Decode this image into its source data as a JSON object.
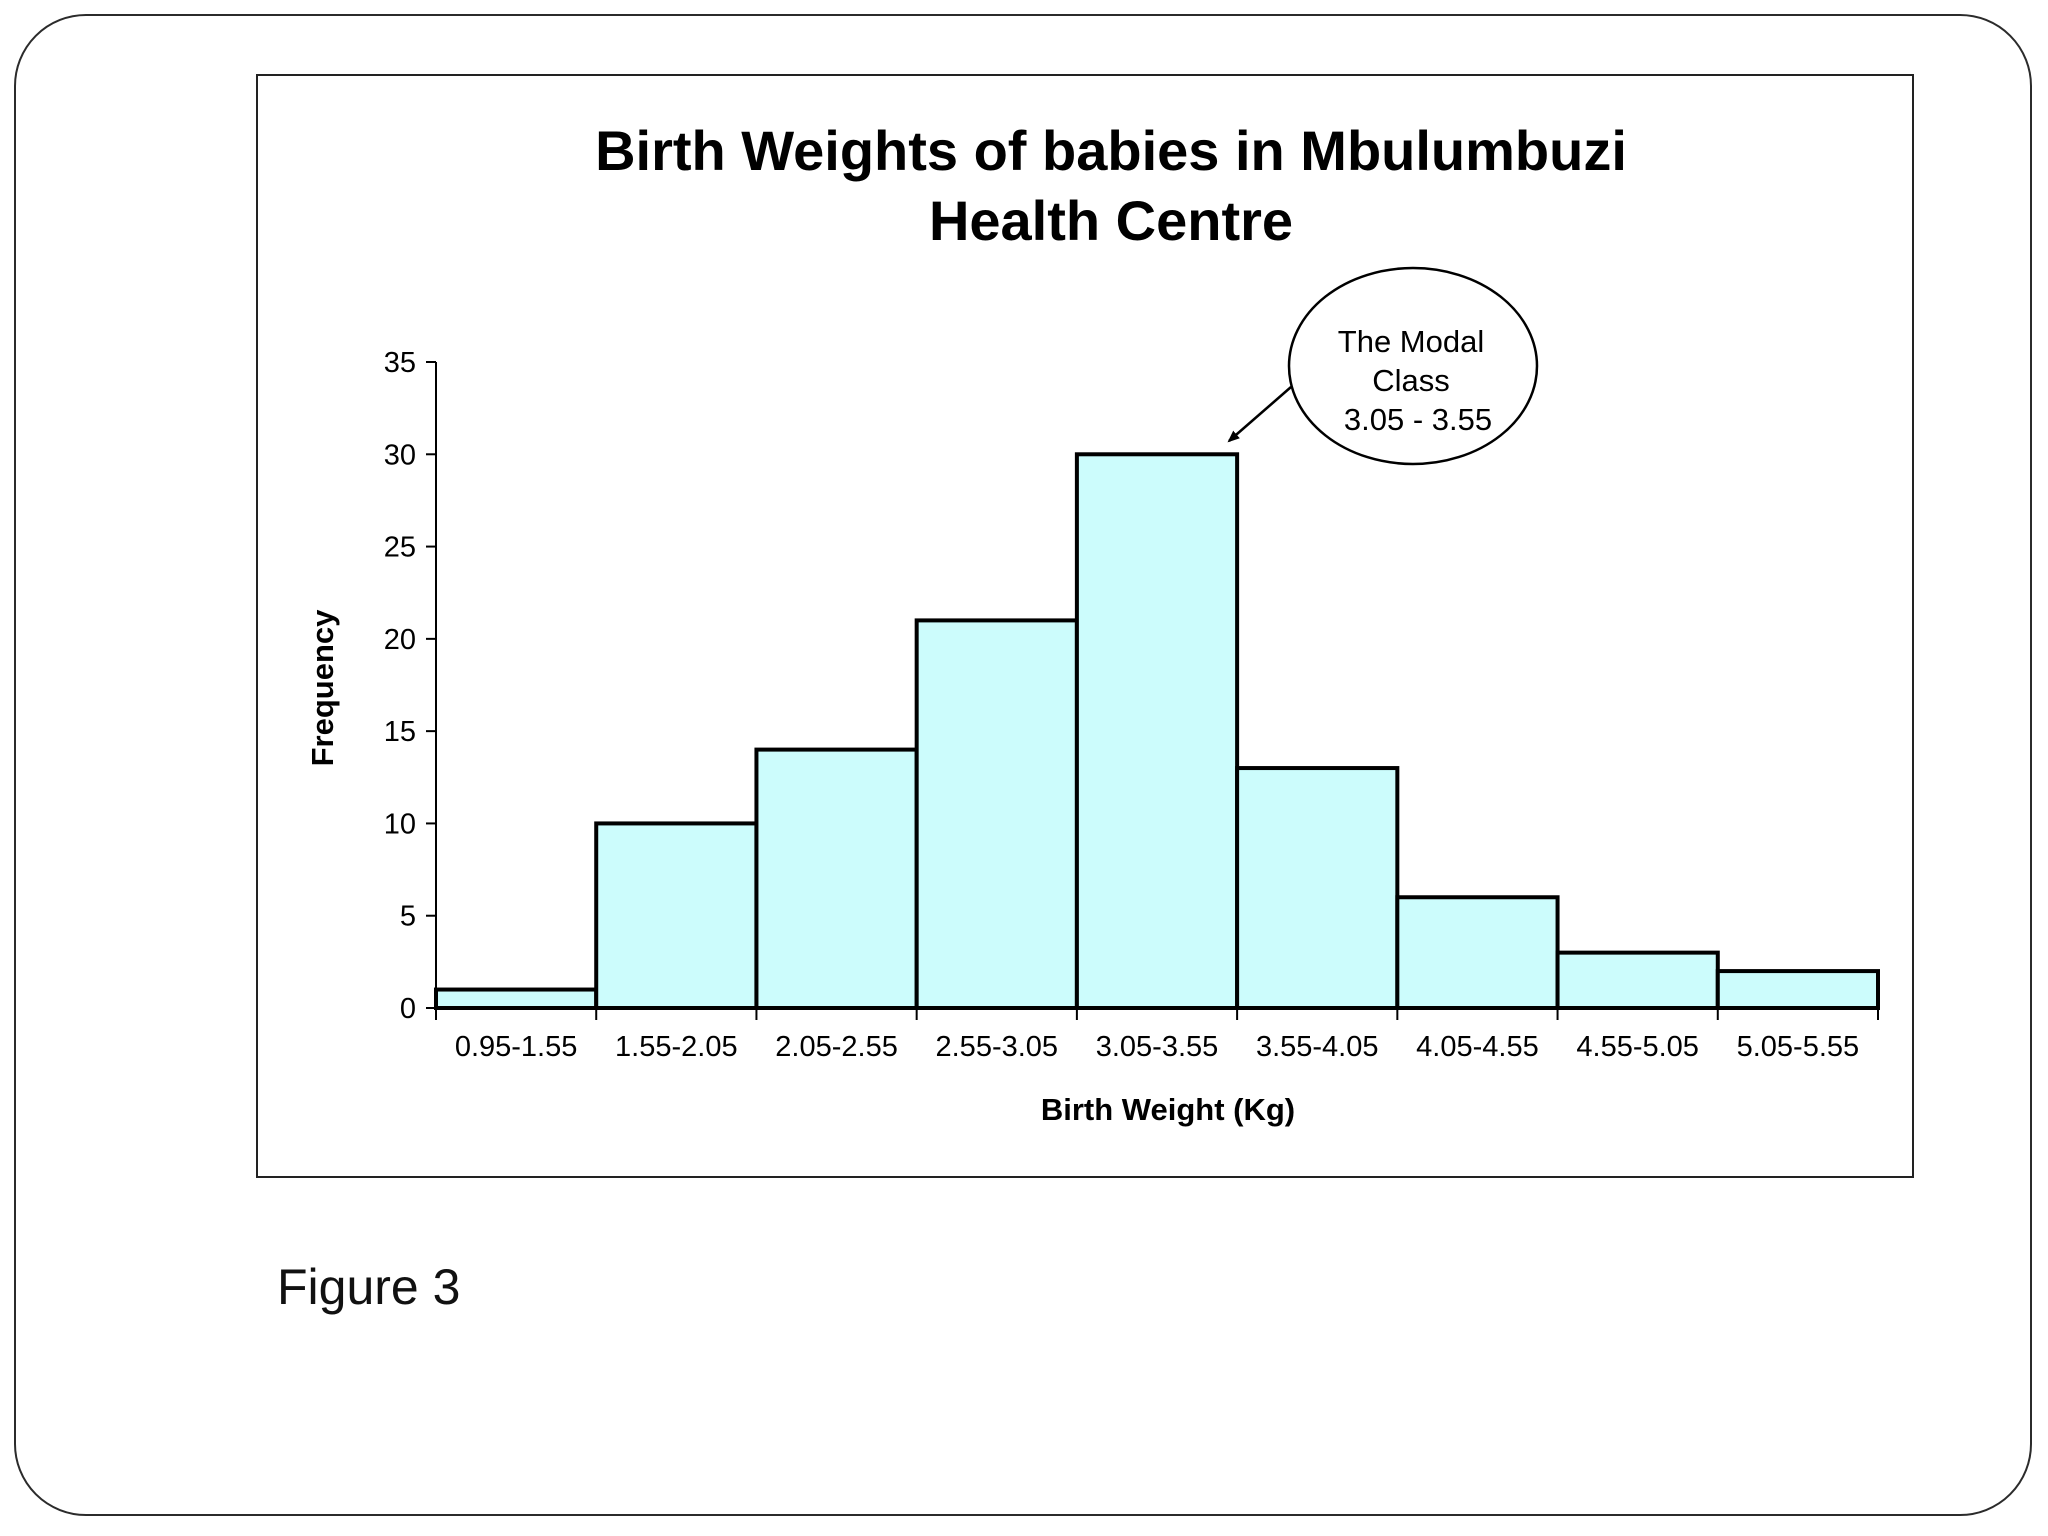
{
  "caption": "Figure 3",
  "chart_data": {
    "type": "bar",
    "title_lines": [
      "Birth Weights of babies in Mbulumbuzi",
      "Health Centre"
    ],
    "xlabel": "Birth Weight (Kg)",
    "ylabel": "Frequency",
    "ylim": [
      0,
      35
    ],
    "yticks": [
      0,
      5,
      10,
      15,
      20,
      25,
      30,
      35
    ],
    "categories": [
      "0.95-1.55",
      "1.55-2.05",
      "2.05-2.55",
      "2.55-3.05",
      "3.05-3.55",
      "3.55-4.05",
      "4.05-4.55",
      "4.55-5.05",
      "5.05-5.55"
    ],
    "values": [
      1,
      10,
      14,
      21,
      30,
      13,
      6,
      3,
      2
    ],
    "bar_color": "#ccfcfc",
    "grid": false,
    "legend": "none",
    "annotation": {
      "lines": [
        "The Modal",
        "Class",
        "3.05 - 3.55"
      ],
      "target_category": "3.05-3.55"
    }
  }
}
